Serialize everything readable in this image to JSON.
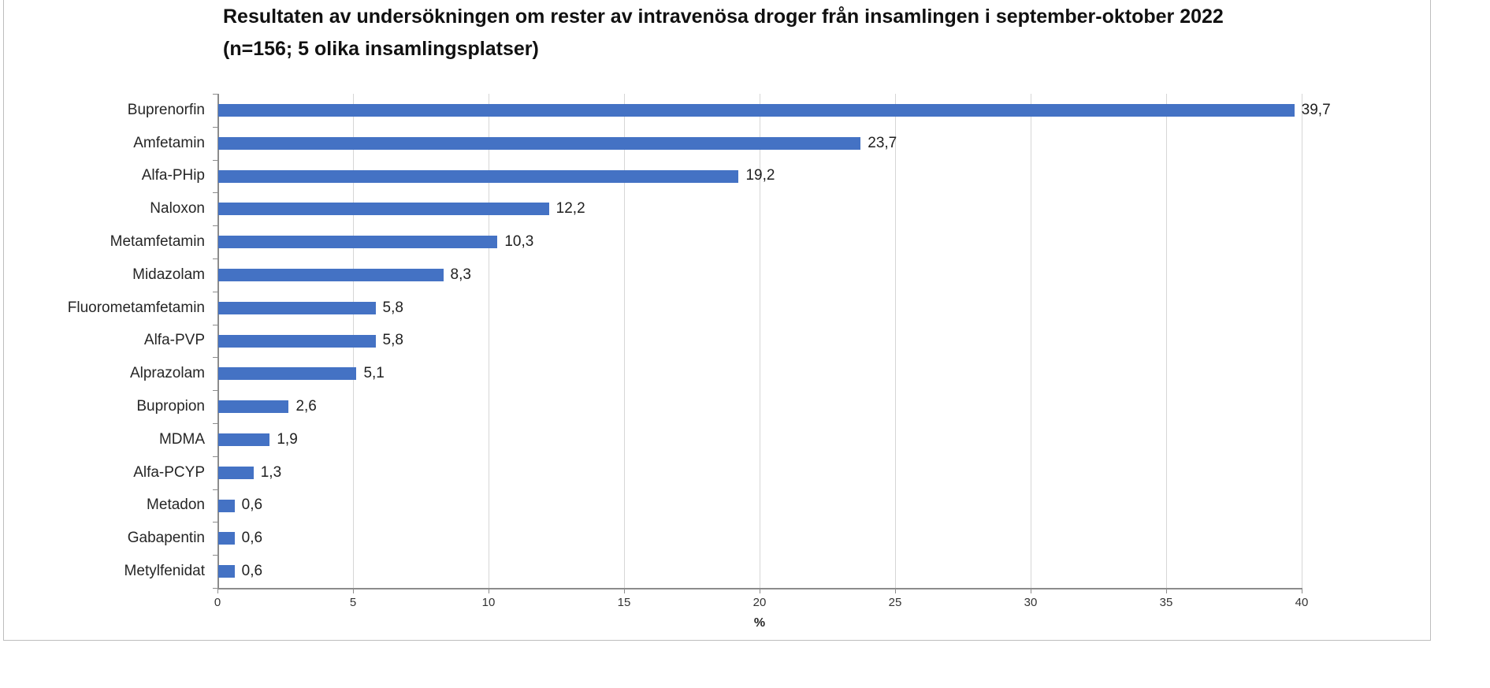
{
  "page": {
    "background": "#ffffff",
    "frame_border_color": "#bdbdbd"
  },
  "chart_data": {
    "type": "bar",
    "orientation": "horizontal",
    "title": "Resultaten av undersökningen om rester av intravenösa droger från insamlingen i september-oktober 2022 (n=156; 5 olika insamlingsplatser)",
    "title_line1": "Resultaten av undersökningen om rester av intravenösa droger från insamlingen i september-oktober 2022",
    "title_line2": "(n=156; 5 olika insamlingsplatser)",
    "categories": [
      "Buprenorfin",
      "Amfetamin",
      "Alfa-PHip",
      "Naloxon",
      "Metamfetamin",
      "Midazolam",
      "Fluorometamfetamin",
      "Alfa-PVP",
      "Alprazolam",
      "Bupropion",
      "MDMA",
      "Alfa-PCYP",
      "Metadon",
      "Gabapentin",
      "Metylfenidat"
    ],
    "values": [
      39.7,
      23.7,
      19.2,
      12.2,
      10.3,
      8.3,
      5.8,
      5.8,
      5.1,
      2.6,
      1.9,
      1.3,
      0.6,
      0.6,
      0.6
    ],
    "value_labels": [
      "39,7",
      "23,7",
      "19,2",
      "12,2",
      "10,3",
      "8,3",
      "5,8",
      "5,8",
      "5,1",
      "2,6",
      "1,9",
      "1,3",
      "0,6",
      "0,6",
      "0,6"
    ],
    "xlabel": "%",
    "ylabel": "",
    "xlim": [
      0,
      40
    ],
    "x_ticks": [
      0,
      5,
      10,
      15,
      20,
      25,
      30,
      35,
      40
    ],
    "x_tick_labels": [
      "0",
      "5",
      "10",
      "15",
      "20",
      "25",
      "30",
      "35",
      "40"
    ],
    "grid": true,
    "legend": false,
    "data_labels": true,
    "bar_color": "#4472C4",
    "gridline_color": "#d6d6d6",
    "axis_color": "#8c8c8c",
    "title_color": "#111111",
    "label_color": "#262626"
  }
}
